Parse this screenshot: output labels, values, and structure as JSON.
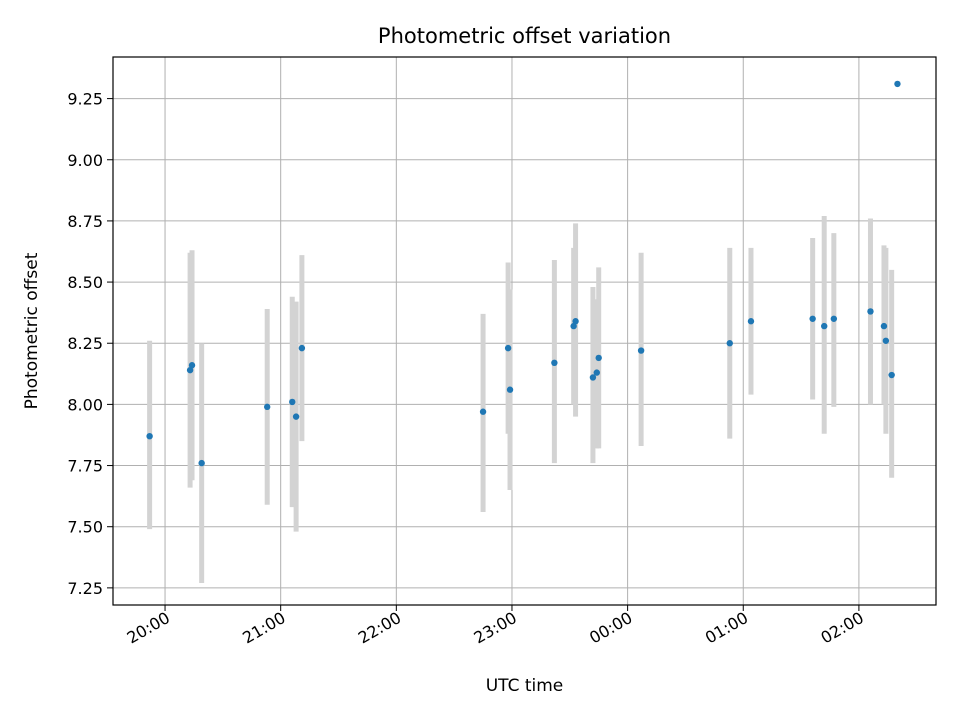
{
  "chart_data": {
    "type": "scatter",
    "title": "Photometric offset variation",
    "xlabel": "UTC time",
    "ylabel": "Photometric offset",
    "x_axis": "time",
    "x_range": [
      "19:33",
      "02:40"
    ],
    "xticks": [
      "20:00",
      "21:00",
      "22:00",
      "23:00",
      "00:00",
      "01:00",
      "02:00"
    ],
    "ylim": [
      7.18,
      9.42
    ],
    "yticks": [
      "7.25",
      "7.50",
      "7.75",
      "8.00",
      "8.25",
      "8.50",
      "8.75",
      "9.00",
      "9.25"
    ],
    "grid": true,
    "colors": {
      "point": "#1f77b4",
      "errorbar": "#d3d3d3",
      "grid": "#b0b0b0"
    },
    "points": [
      {
        "time": "19:52",
        "y": 7.87,
        "low": 7.49,
        "high": 8.26
      },
      {
        "time": "20:13",
        "y": 8.14,
        "low": 7.66,
        "high": 8.62
      },
      {
        "time": "20:14",
        "y": 8.16,
        "low": 7.69,
        "high": 8.63
      },
      {
        "time": "20:19",
        "y": 7.76,
        "low": 7.27,
        "high": 8.25
      },
      {
        "time": "20:53",
        "y": 7.99,
        "low": 7.59,
        "high": 8.39
      },
      {
        "time": "21:06",
        "y": 8.01,
        "low": 7.58,
        "high": 8.44
      },
      {
        "time": "21:08",
        "y": 7.95,
        "low": 7.48,
        "high": 8.42
      },
      {
        "time": "21:11",
        "y": 8.23,
        "low": 7.85,
        "high": 8.61
      },
      {
        "time": "22:45",
        "y": 7.97,
        "low": 7.56,
        "high": 8.37
      },
      {
        "time": "22:58",
        "y": 8.23,
        "low": 7.88,
        "high": 8.58
      },
      {
        "time": "22:59",
        "y": 8.06,
        "low": 7.65,
        "high": 8.47
      },
      {
        "time": "23:22",
        "y": 8.17,
        "low": 7.76,
        "high": 8.59
      },
      {
        "time": "23:32",
        "y": 8.32,
        "low": 8.0,
        "high": 8.64
      },
      {
        "time": "23:33",
        "y": 8.34,
        "low": 7.95,
        "high": 8.74
      },
      {
        "time": "23:42",
        "y": 8.11,
        "low": 7.76,
        "high": 8.48
      },
      {
        "time": "23:44",
        "y": 8.13,
        "low": 7.82,
        "high": 8.43
      },
      {
        "time": "23:45",
        "y": 8.19,
        "low": 7.82,
        "high": 8.56
      },
      {
        "time": "00:07",
        "y": 8.22,
        "low": 7.83,
        "high": 8.62
      },
      {
        "time": "00:53",
        "y": 8.25,
        "low": 7.86,
        "high": 8.64
      },
      {
        "time": "01:04",
        "y": 8.34,
        "low": 8.04,
        "high": 8.64
      },
      {
        "time": "01:36",
        "y": 8.35,
        "low": 8.02,
        "high": 8.68
      },
      {
        "time": "01:42",
        "y": 8.32,
        "low": 7.88,
        "high": 8.77
      },
      {
        "time": "01:47",
        "y": 8.35,
        "low": 7.99,
        "high": 8.7
      },
      {
        "time": "02:06",
        "y": 8.38,
        "low": 8.0,
        "high": 8.76
      },
      {
        "time": "02:13",
        "y": 8.32,
        "low": 8.0,
        "high": 8.65
      },
      {
        "time": "02:14",
        "y": 8.26,
        "low": 7.88,
        "high": 8.64
      },
      {
        "time": "02:17",
        "y": 8.12,
        "low": 7.7,
        "high": 8.55
      },
      {
        "time": "02:20",
        "y": 9.31,
        "low": 9.31,
        "high": 9.31
      }
    ]
  }
}
